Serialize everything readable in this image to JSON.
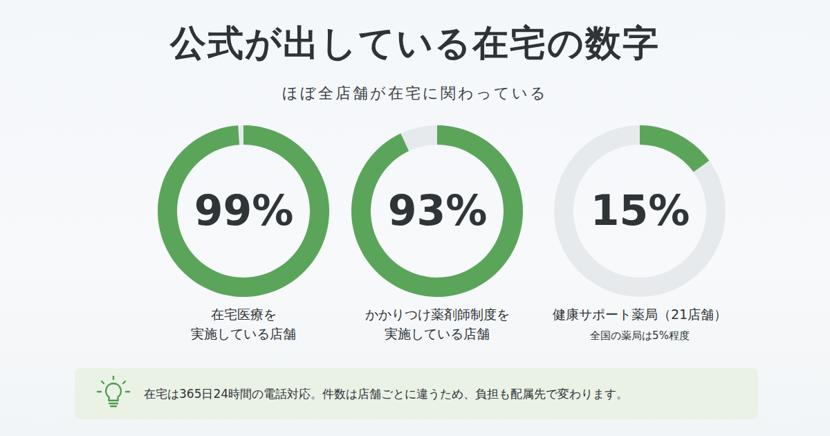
{
  "title": "公式が出している在宅の数字",
  "subtitle": "ほぼ全店舗が在宅に関わっている",
  "chart_data": [
    {
      "type": "donut",
      "title": "在宅医療を\n実施している店舗",
      "values": [
        99
      ],
      "value_labels": [
        "99%"
      ],
      "ylim": [
        0,
        100
      ],
      "color": "#5ba55a"
    },
    {
      "type": "donut",
      "title": "かかりつけ薬剤師制度を\n実施している店舗",
      "values": [
        93
      ],
      "value_labels": [
        "93%"
      ],
      "ylim": [
        0,
        100
      ],
      "color": "#5ba55a"
    },
    {
      "type": "donut",
      "title": "健康サポート薬局（21店舗）",
      "subtitle": "全国の薬局は5%程度",
      "values": [
        15
      ],
      "value_labels": [
        "15%"
      ],
      "ylim": [
        0,
        100
      ],
      "color": "#5ba55a"
    }
  ],
  "note": "在宅は365日24時間の電話対応。件数は店舗ごとに違うため、負担も配属先で変わります。"
}
